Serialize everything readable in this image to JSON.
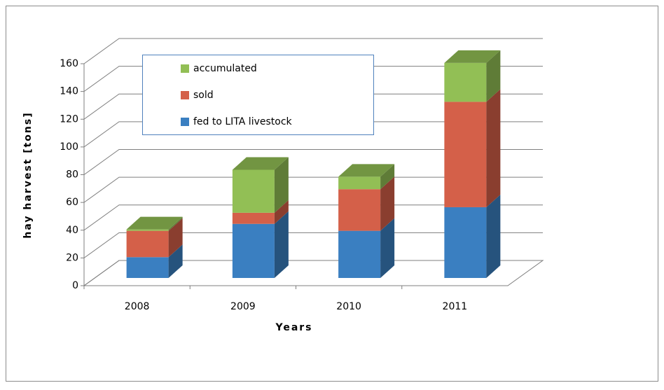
{
  "chart_data": {
    "type": "bar3d-stacked",
    "x_label": "Years",
    "y_label": "hay harvest [tons]",
    "categories": [
      "2008",
      "2009",
      "2010",
      "2011"
    ],
    "series": [
      {
        "name": "fed to LITA livestock",
        "color": "#3a7fc1",
        "values": [
          15,
          39,
          34,
          51
        ]
      },
      {
        "name": "sold",
        "color": "#d46049",
        "values": [
          19,
          8,
          30,
          76
        ]
      },
      {
        "name": "accumulated",
        "color": "#92bf55",
        "values": [
          1,
          31,
          9,
          28
        ]
      }
    ],
    "ylim": [
      0,
      160
    ],
    "yticks": [
      0,
      20,
      40,
      60,
      80,
      100,
      120,
      140,
      160
    ],
    "grid": true
  }
}
